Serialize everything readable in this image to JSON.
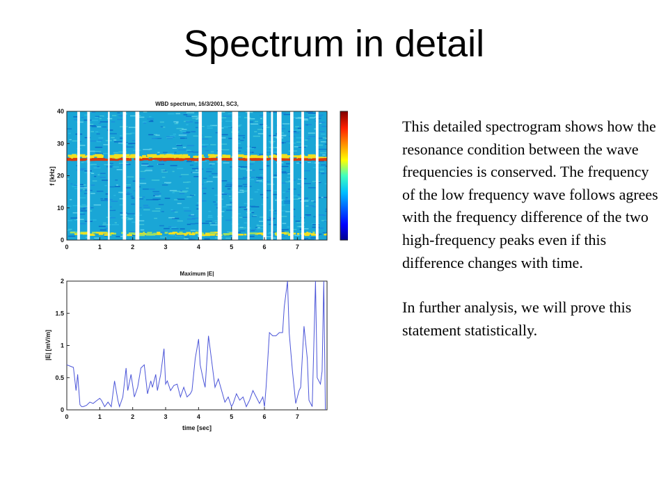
{
  "slide": {
    "title": "Spectrum in detail",
    "paragraphs": [
      "This detailed spectrogram shows how the resonance condition between the wave frequencies is conserved. The frequency of the low frequency wave follows agrees with the frequency difference of the two high-frequency peaks even if this difference changes with time.",
      "In further analysis, we will prove this statement statistically."
    ]
  },
  "chart_data": [
    {
      "type": "heatmap",
      "title": "WBD spectrum, 16/3/2001, SC3,",
      "xlabel": "",
      "ylabel": "f [kHz]",
      "xlim": [
        0,
        7.9
      ],
      "ylim": [
        0,
        40
      ],
      "x_ticks": [
        "0",
        "1",
        "2",
        "3",
        "4",
        "5",
        "6",
        "7"
      ],
      "y_ticks": [
        "0",
        "10",
        "20",
        "30",
        "40"
      ],
      "colorbar": {
        "ticks": [
          "40",
          "20",
          "0",
          "-20",
          "-40",
          "-60"
        ],
        "range": [
          -65,
          55
        ]
      },
      "colors": {
        "background": "#1aa6d6",
        "band": "#d63a12",
        "band_glow": "#f2e020",
        "low": "#2f6fe0"
      },
      "resonance_band_khz": 25,
      "low_frequency_band_khz": 2,
      "data_gaps_sec": [
        [
          0.32,
          0.4
        ],
        [
          0.62,
          0.7
        ],
        [
          1.25,
          1.3
        ],
        [
          1.7,
          1.8
        ],
        [
          2.08,
          2.2
        ],
        [
          4.0,
          4.1
        ],
        [
          4.58,
          4.7
        ],
        [
          5.02,
          5.2
        ],
        [
          5.48,
          5.55
        ],
        [
          5.96,
          6.06
        ],
        [
          6.2,
          6.26
        ],
        [
          6.38,
          6.52
        ],
        [
          6.78,
          6.88
        ],
        [
          7.12,
          7.2
        ],
        [
          7.56,
          7.64
        ]
      ]
    },
    {
      "type": "line",
      "title": "Maximum |E|",
      "xlabel": "time [sec]",
      "ylabel": "|E| [mV/m]",
      "xlim": [
        0,
        7.9
      ],
      "ylim": [
        0,
        2
      ],
      "x_ticks": [
        "0",
        "1",
        "2",
        "3",
        "4",
        "5",
        "6",
        "7"
      ],
      "y_ticks": [
        "0",
        "0.5",
        "1",
        "1.5",
        "2"
      ],
      "line_color": "#4a54d8",
      "series": [
        {
          "x": [
            0,
            0.1,
            0.2,
            0.28,
            0.33,
            0.4,
            0.45,
            0.5,
            0.6,
            0.7,
            0.8,
            0.9,
            1.0,
            1.05,
            1.15,
            1.25,
            1.35,
            1.45,
            1.55,
            1.6,
            1.7,
            1.8,
            1.85,
            1.95,
            2.05,
            2.15,
            2.25,
            2.35,
            2.45,
            2.55,
            2.6,
            2.7,
            2.75,
            2.85,
            2.95,
            3.0,
            3.05,
            3.15,
            3.25,
            3.35,
            3.45,
            3.55,
            3.65,
            3.75,
            3.8,
            3.9,
            4.0,
            4.05,
            4.15,
            4.2,
            4.3,
            4.4,
            4.5,
            4.6,
            4.7,
            4.8,
            4.9,
            5.0,
            5.05,
            5.15,
            5.25,
            5.35,
            5.45,
            5.55,
            5.65,
            5.75,
            5.85,
            5.95,
            6.0,
            6.05,
            6.15,
            6.25,
            6.35,
            6.45,
            6.55,
            6.6,
            6.7,
            6.75,
            6.85,
            6.95,
            7.05,
            7.1,
            7.2,
            7.3,
            7.35,
            7.45,
            7.55,
            7.6,
            7.7,
            7.75,
            7.8,
            7.85
          ],
          "y": [
            0.7,
            0.68,
            0.66,
            0.3,
            0.55,
            0.08,
            0.05,
            0.05,
            0.07,
            0.12,
            0.1,
            0.14,
            0.18,
            0.15,
            0.05,
            0.12,
            0.05,
            0.45,
            0.15,
            0.05,
            0.2,
            0.65,
            0.3,
            0.55,
            0.2,
            0.35,
            0.65,
            0.7,
            0.25,
            0.45,
            0.35,
            0.55,
            0.3,
            0.55,
            0.95,
            0.4,
            0.45,
            0.3,
            0.38,
            0.4,
            0.2,
            0.35,
            0.2,
            0.25,
            0.3,
            0.8,
            1.1,
            0.7,
            0.45,
            0.35,
            1.15,
            0.75,
            0.35,
            0.48,
            0.3,
            0.12,
            0.2,
            0.05,
            0.1,
            0.25,
            0.15,
            0.2,
            0.05,
            0.15,
            0.3,
            0.2,
            0.1,
            0.2,
            0.05,
            0.35,
            1.2,
            1.15,
            1.15,
            1.2,
            1.2,
            1.6,
            2.0,
            1.2,
            0.6,
            0.1,
            0.3,
            0.35,
            1.3,
            0.8,
            0.15,
            0.05,
            2.0,
            0.5,
            0.4,
            0.6,
            2.0,
            0.0
          ]
        }
      ]
    }
  ]
}
